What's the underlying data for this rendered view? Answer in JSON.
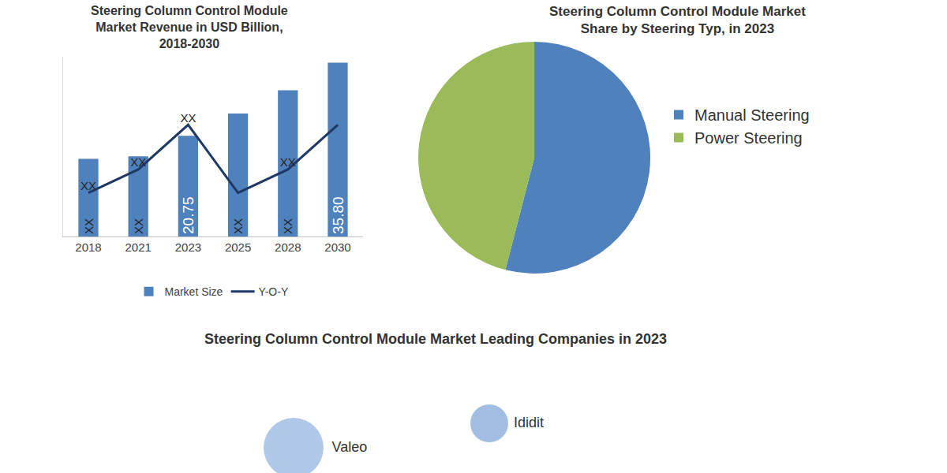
{
  "chart_data": [
    {
      "type": "bar",
      "title": "Steering Column Control Module Market Revenue in USD Billion, 2018-2030",
      "categories": [
        "2018",
        "2021",
        "2023",
        "2025",
        "2028",
        "2030"
      ],
      "series": [
        {
          "name": "Market Size",
          "type": "bar",
          "color": "#4f81bd",
          "values": [
            16.0,
            16.5,
            20.75,
            25.3,
            30.1,
            35.8
          ],
          "value_labels": [
            "XX",
            "XX",
            "20.75",
            "XX",
            "XX",
            "35.80"
          ]
        },
        {
          "name": "Y-O-Y",
          "type": "line",
          "color": "#1f3864",
          "values": [
            9.0,
            13.8,
            23.0,
            9.0,
            13.8,
            23.0
          ],
          "value_labels": [
            "XX",
            "XX",
            "XX",
            null,
            "XX",
            null
          ]
        }
      ],
      "ylim": [
        0,
        37
      ],
      "data_labels": true,
      "tick_labels": "x",
      "grid": false,
      "legend": "bottom"
    },
    {
      "type": "pie",
      "title": "Steering Column Control Module Market Share by Steering Typ, in 2023",
      "categories": [
        "Manual Steering",
        "Power Steering"
      ],
      "values": [
        54,
        46
      ],
      "colors": [
        "#4f81bd",
        "#9bbb59"
      ],
      "data_labels": false,
      "legend": "right"
    },
    {
      "type": "bubble",
      "title": "Steering Column Control Module Market Leading Companies in 2023",
      "labels": [
        "Valeo",
        "Ididit"
      ],
      "x": [
        3.72,
        6.2
      ],
      "y": [
        2.13,
        4.2
      ],
      "size": [
        76,
        48
      ],
      "colors": [
        "#8fb1de",
        "#7ba2d6"
      ],
      "xlim": [
        0,
        12
      ],
      "ylim": [
        0,
        10
      ],
      "tick_labels": false,
      "grid": false
    }
  ]
}
